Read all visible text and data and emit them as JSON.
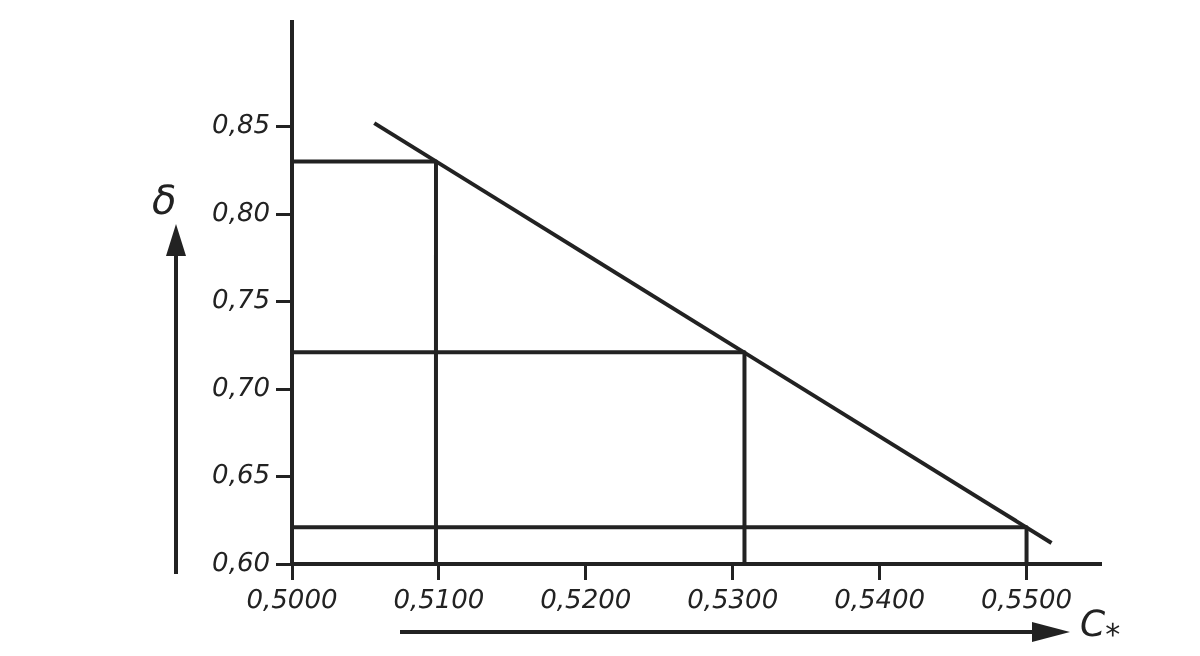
{
  "chart_data": {
    "type": "line",
    "xlabel": "C$_{*}$",
    "ylabel": "δ",
    "xlim": [
      0.5,
      0.555
    ],
    "ylim": [
      0.6,
      0.91
    ],
    "xticks": [
      {
        "value": 0.5,
        "label": "0,5000"
      },
      {
        "value": 0.51,
        "label": "0,5100"
      },
      {
        "value": 0.52,
        "label": "0,5200"
      },
      {
        "value": 0.53,
        "label": "0,5300"
      },
      {
        "value": 0.54,
        "label": "0,5400"
      },
      {
        "value": 0.55,
        "label": "0,5500"
      }
    ],
    "yticks": [
      {
        "value": 0.6,
        "label": "0,60"
      },
      {
        "value": 0.65,
        "label": "0,65"
      },
      {
        "value": 0.7,
        "label": "0,70"
      },
      {
        "value": 0.75,
        "label": "0,75"
      },
      {
        "value": 0.8,
        "label": "0,80"
      },
      {
        "value": 0.85,
        "label": "0,85"
      }
    ],
    "grid": false,
    "legend": false,
    "marker": "none",
    "line_style": "solid",
    "series": [
      {
        "color": "#222222",
        "x": [
          0.5056,
          0.5517
        ],
        "values": [
          0.852,
          0.612
        ]
      },
      {
        "color": "#222222",
        "x": [
          0.5,
          0.5098,
          0.5098
        ],
        "values": [
          0.83,
          0.83,
          0.6
        ]
      },
      {
        "color": "#222222",
        "x": [
          0.5,
          0.5308,
          0.5308
        ],
        "values": [
          0.721,
          0.721,
          0.6
        ]
      },
      {
        "color": "#222222",
        "x": [
          0.5,
          0.55,
          0.55
        ],
        "values": [
          0.621,
          0.621,
          0.6
        ]
      }
    ]
  }
}
